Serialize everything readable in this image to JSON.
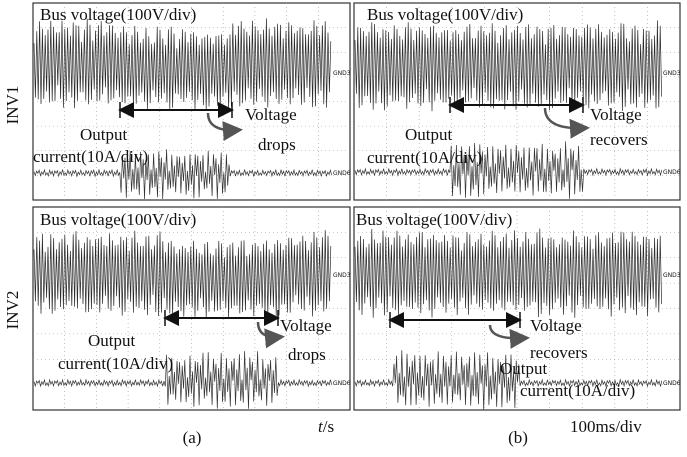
{
  "row_labels": [
    "INV1",
    "INV2"
  ],
  "panels": [
    {
      "voltage_label": "Bus voltage(100V/div)",
      "voltage_ground": "GND3",
      "current_label": [
        "Output",
        "current(10A/div)"
      ],
      "current_ground": "GND6",
      "annotation": [
        "Voltage",
        "drops"
      ]
    },
    {
      "voltage_label": "Bus voltage(100V/div)",
      "voltage_ground": "GND3",
      "current_label": [
        "Output",
        "current(10A/div)"
      ],
      "current_ground": "GND6",
      "annotation": [
        "Voltage",
        "recovers"
      ]
    },
    {
      "voltage_label": "Bus voltage(100V/div)",
      "voltage_ground": "GND3",
      "current_label": [
        "Output",
        "current(10A/div)"
      ],
      "current_ground": "GND6",
      "annotation": [
        "Voltage",
        "drops"
      ]
    },
    {
      "voltage_label": "Bus voltage(100V/div)",
      "voltage_ground": "GND3",
      "current_label": [
        "Output",
        "current(10A/div)"
      ],
      "current_ground": "GND6",
      "annotation": [
        "Voltage",
        "recovers"
      ]
    }
  ],
  "captions": [
    "(a)",
    "(b)"
  ],
  "time_axis": {
    "symbol": "t",
    "unit": "/s"
  },
  "scale": "100ms/div"
}
